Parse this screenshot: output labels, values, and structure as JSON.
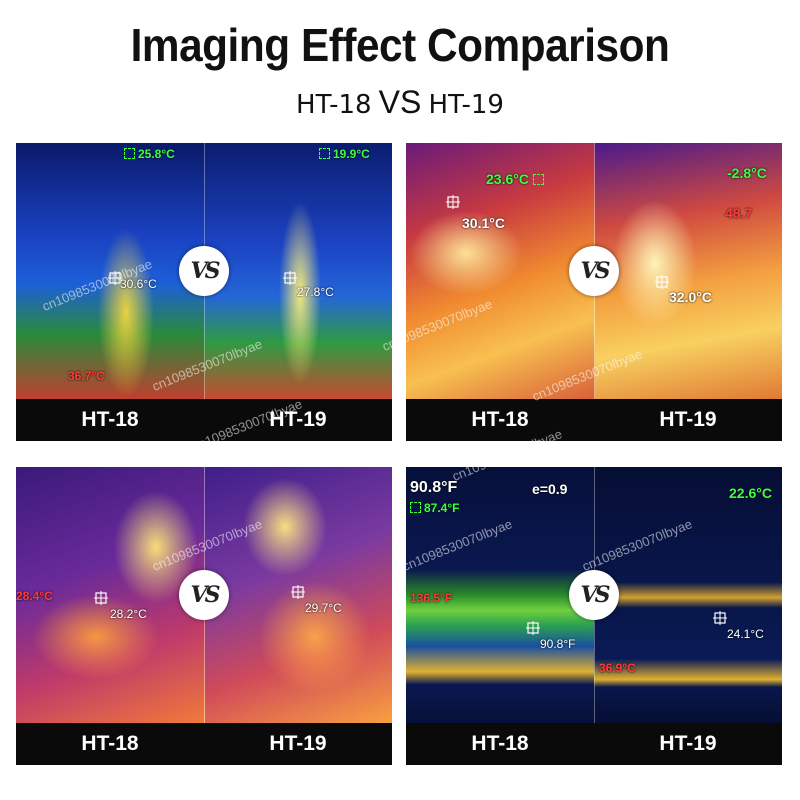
{
  "header": {
    "title": "Imaging Effect Comparison",
    "model_a": "HT-18",
    "vs": "VS",
    "model_b": "HT-19"
  },
  "badge": {
    "vs_label": "VS"
  },
  "watermark": "cn1098530070lbyae",
  "panels": [
    {
      "left": {
        "label": "HT-18",
        "top_reading": "25.8°C",
        "point_reading": "30.6°C",
        "low_reading": "36.7°C"
      },
      "right": {
        "label": "HT-19",
        "top_reading": "19.9°C",
        "point_reading": "27.8°C"
      }
    },
    {
      "left": {
        "label": "HT-18",
        "top_reading": "23.6°C",
        "point_reading": "30.1°C"
      },
      "right": {
        "label": "HT-19",
        "top_reading": "-2.8°C",
        "point_reading": "32.0°C",
        "high_reading": "48.7"
      }
    },
    {
      "left": {
        "label": "HT-18",
        "side_reading": "28.4°C",
        "point_reading": "28.2°C"
      },
      "right": {
        "label": "HT-19",
        "point_reading": "29.7°C"
      }
    },
    {
      "left": {
        "label": "HT-18",
        "max_reading": "90.8°F",
        "min_reading": "87.4°F",
        "emissivity": "e=0.9",
        "hot_reading": "136.5°F",
        "point_reading": "90.8°F"
      },
      "right": {
        "label": "HT-19",
        "top_reading": "22.6°C",
        "point_reading": "24.1°C",
        "low_reading": "36.9°C"
      }
    }
  ],
  "colors": {
    "reading_green": "#3cff3c",
    "reading_red": "#ff3b3b",
    "label_bar": "#0a0a0a"
  }
}
